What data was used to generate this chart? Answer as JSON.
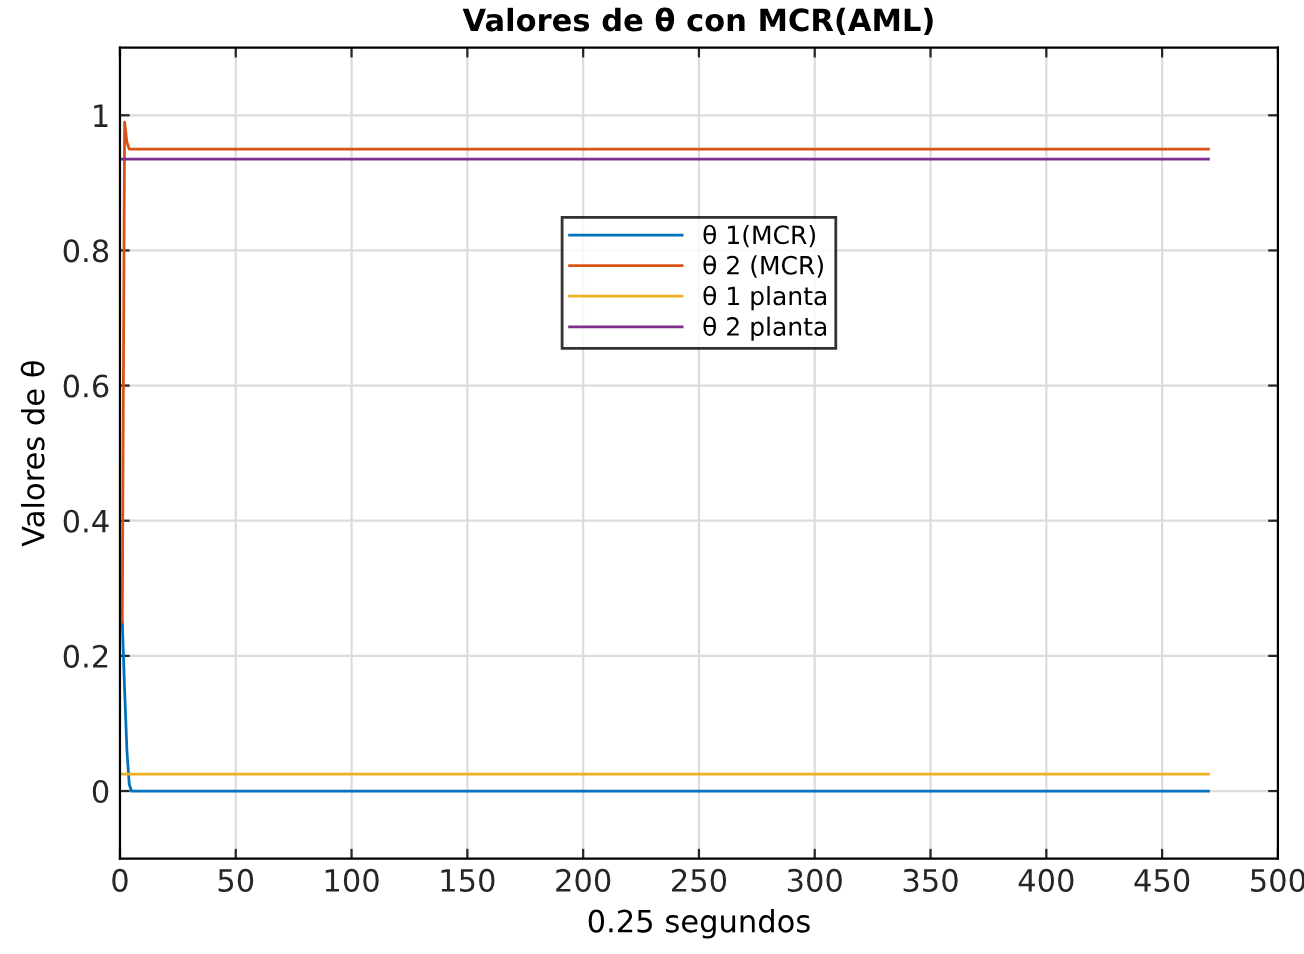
{
  "chart_data": {
    "type": "line",
    "title": "Valores de θ con MCR(AML)",
    "xlabel": "0.25 segundos",
    "ylabel": "Valores de θ",
    "xlim": [
      0,
      500
    ],
    "ylim": [
      -0.1,
      1.1
    ],
    "xticks": [
      0,
      50,
      100,
      150,
      200,
      250,
      300,
      350,
      400,
      450,
      500
    ],
    "yticks": [
      0,
      0.2,
      0.4,
      0.6,
      0.8,
      1
    ],
    "grid": true,
    "legend": "center",
    "series": [
      {
        "name": "θ 1(MCR)",
        "color": "#0072bd",
        "x": [
          1,
          2,
          3,
          4,
          5,
          470
        ],
        "values": [
          0.25,
          0.15,
          0.06,
          0.01,
          0.0,
          0.0
        ]
      },
      {
        "name": "θ 2 (MCR)",
        "color": "#d95319",
        "x": [
          1,
          2,
          3,
          4,
          5,
          470
        ],
        "values": [
          0.25,
          0.99,
          0.96,
          0.95,
          0.95,
          0.95
        ]
      },
      {
        "name": "θ 1 planta",
        "color": "#edb120",
        "x": [
          1,
          470
        ],
        "values": [
          0.025,
          0.025
        ]
      },
      {
        "name": "θ 2 planta",
        "color": "#7e2f8e",
        "x": [
          1,
          470
        ],
        "values": [
          0.935,
          0.935
        ]
      }
    ]
  }
}
